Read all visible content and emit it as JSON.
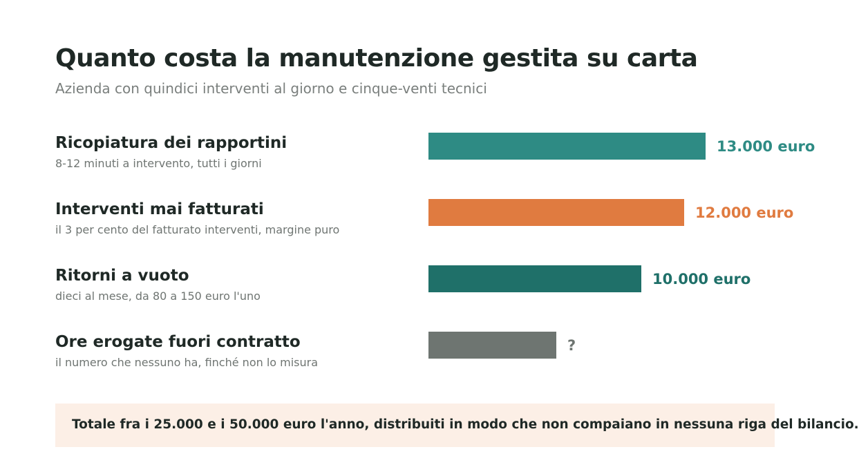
{
  "title": "Quanto costa la manutenzione gestita su carta",
  "subtitle": "Azienda con quindici interventi al giorno e cinque-venti tecnici",
  "total_note": "Totale fra i 25.000 e i 50.000 euro l'anno, distribuiti in modo che non compaiano in nessuna riga del bilancio.",
  "chart_data": {
    "type": "bar",
    "orientation": "horizontal",
    "categories": [
      "Ricopiatura dei rapportini",
      "Interventi mai fatturati",
      "Ritorni a vuoto",
      "Ore erogate fuori contratto"
    ],
    "descriptions": [
      "8-12 minuti a intervento, tutti i giorni",
      "il 3 per cento del fatturato interventi, margine puro",
      "dieci al mese, da 80 a 150 euro l'uno",
      "il numero che nessuno ha, finché non lo misura"
    ],
    "values": [
      13000,
      12000,
      10000,
      null
    ],
    "value_labels": [
      "13.000 euro",
      "12.000 euro",
      "10.000 euro",
      "?"
    ],
    "colors": [
      "#2e8b84",
      "#e07b40",
      "#1f7069",
      "#6e7571"
    ],
    "xlim": [
      0,
      13000
    ],
    "grid": false,
    "legend": "none"
  }
}
